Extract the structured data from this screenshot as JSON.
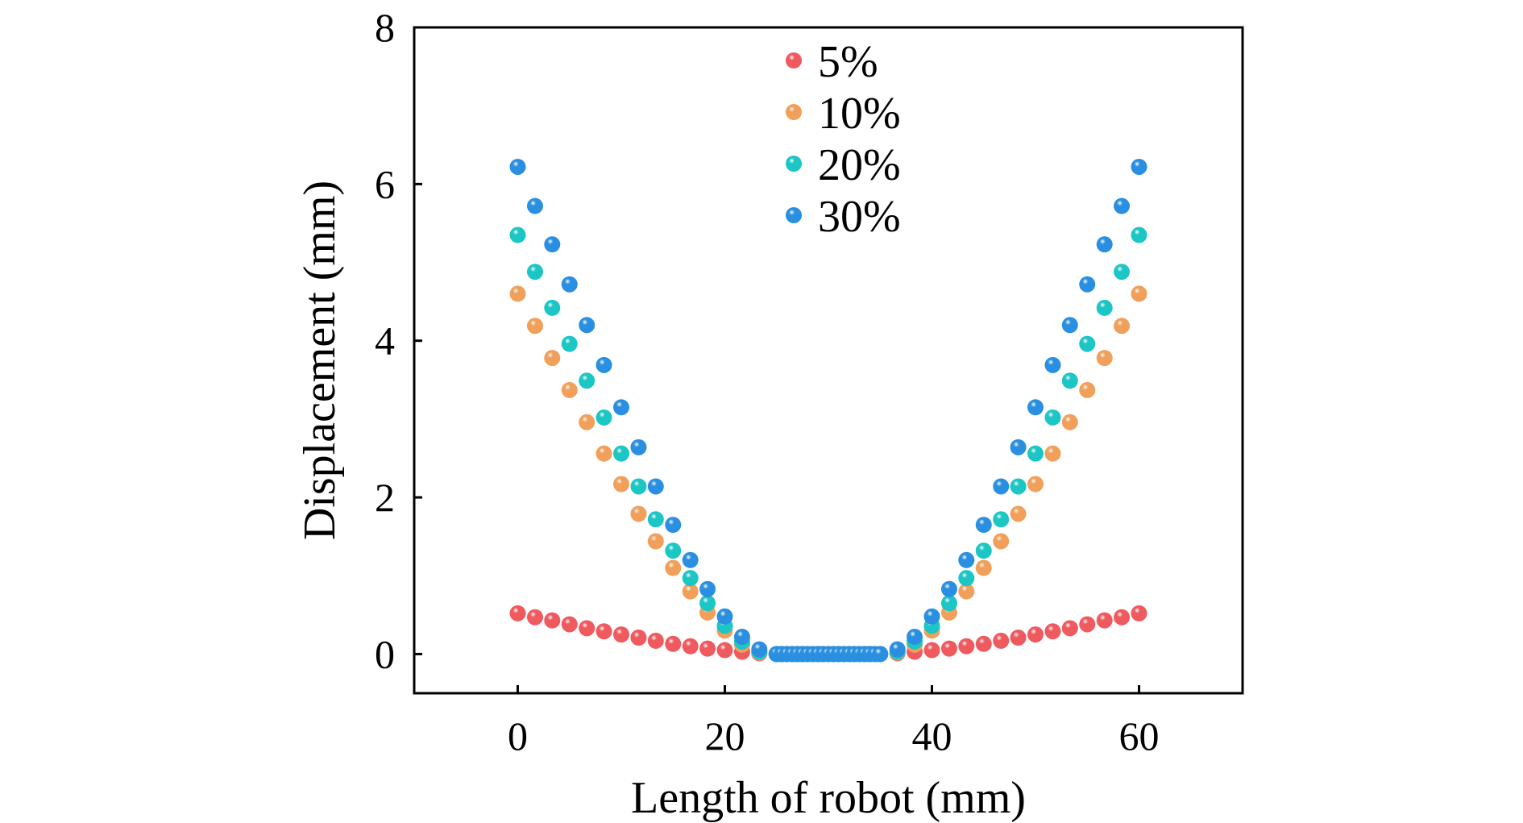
{
  "chart_data": {
    "type": "scatter",
    "title": "",
    "xlabel": "Length of robot (mm)",
    "ylabel": "Displacement (mm)",
    "xlim": [
      -10,
      70
    ],
    "ylim": [
      -0.5,
      8
    ],
    "xticks": [
      0,
      20,
      40,
      60
    ],
    "yticks": [
      0,
      2,
      4,
      6,
      8
    ],
    "grid": false,
    "legend_position": "top-center",
    "x": [
      0,
      1.67,
      3.33,
      5,
      6.67,
      8.33,
      10,
      11.67,
      13.33,
      15,
      16.67,
      18.33,
      20,
      21.67,
      23.33,
      25,
      25.5,
      26,
      26.5,
      27,
      27.5,
      28,
      28.5,
      29,
      29.5,
      30,
      30.5,
      31,
      31.5,
      32,
      32.5,
      33,
      33.5,
      34,
      34.5,
      35,
      36.67,
      38.33,
      40,
      41.67,
      43.33,
      45,
      46.67,
      48.33,
      50,
      51.67,
      53.33,
      55,
      56.67,
      58.33,
      60
    ],
    "series": [
      {
        "name": "5%",
        "color": "#ef5a5f",
        "values": [
          0.52,
          0.47,
          0.43,
          0.38,
          0.33,
          0.29,
          0.25,
          0.21,
          0.17,
          0.13,
          0.1,
          0.07,
          0.05,
          0.03,
          0.01,
          0,
          0,
          0,
          0,
          0,
          0,
          0,
          0,
          0,
          0,
          0,
          0,
          0,
          0,
          0,
          0,
          0,
          0,
          0,
          0,
          0,
          0.01,
          0.03,
          0.05,
          0.07,
          0.1,
          0.13,
          0.17,
          0.21,
          0.25,
          0.29,
          0.33,
          0.38,
          0.43,
          0.47,
          0.52
        ]
      },
      {
        "name": "10%",
        "color": "#f0a05a",
        "values": [
          4.6,
          4.19,
          3.78,
          3.37,
          2.96,
          2.56,
          2.17,
          1.79,
          1.44,
          1.1,
          0.8,
          0.53,
          0.3,
          0.12,
          0.02,
          0,
          0,
          0,
          0,
          0,
          0,
          0,
          0,
          0,
          0,
          0,
          0,
          0,
          0,
          0,
          0,
          0,
          0,
          0,
          0,
          0,
          0.02,
          0.12,
          0.3,
          0.53,
          0.8,
          1.1,
          1.44,
          1.79,
          2.17,
          2.56,
          2.96,
          3.37,
          3.78,
          4.19,
          4.6
        ]
      },
      {
        "name": "20%",
        "color": "#1cc6c4",
        "values": [
          5.35,
          4.88,
          4.42,
          3.96,
          3.49,
          3.02,
          2.56,
          2.14,
          1.72,
          1.32,
          0.97,
          0.65,
          0.36,
          0.16,
          0.03,
          0,
          0,
          0,
          0,
          0,
          0,
          0,
          0,
          0,
          0,
          0,
          0,
          0,
          0,
          0,
          0,
          0,
          0,
          0,
          0,
          0,
          0.03,
          0.16,
          0.36,
          0.65,
          0.97,
          1.32,
          1.72,
          2.14,
          2.56,
          3.02,
          3.49,
          3.96,
          4.42,
          4.88,
          5.35
        ]
      },
      {
        "name": "30%",
        "color": "#2a8fe0",
        "values": [
          6.22,
          5.72,
          5.23,
          4.72,
          4.2,
          3.69,
          3.15,
          2.64,
          2.14,
          1.65,
          1.2,
          0.83,
          0.48,
          0.22,
          0.06,
          0,
          0,
          0,
          0,
          0,
          0,
          0,
          0,
          0,
          0,
          0,
          0,
          0,
          0,
          0,
          0,
          0,
          0,
          0,
          0,
          0,
          0.06,
          0.22,
          0.48,
          0.83,
          1.2,
          1.65,
          2.14,
          2.64,
          3.15,
          3.69,
          4.2,
          4.72,
          5.23,
          5.72,
          6.22
        ]
      }
    ]
  }
}
